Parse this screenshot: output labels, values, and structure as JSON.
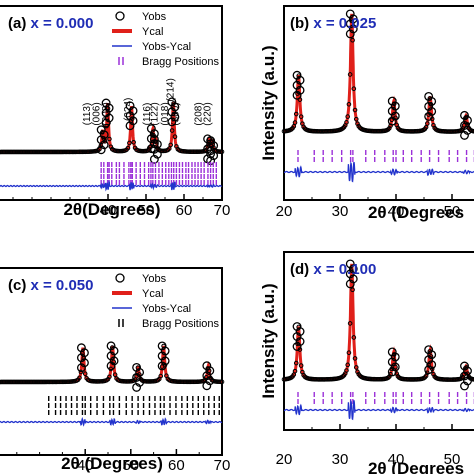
{
  "chart_data": [
    {
      "type": "line",
      "panel_label": "(a)",
      "composition_label": "x = 0.000",
      "xlabel": "2θ(Degrees)",
      "ylabel": "",
      "xlim": [
        10,
        70
      ],
      "ylim": [
        0,
        100
      ],
      "xticks": [
        "40",
        "50",
        "60",
        "70"
      ],
      "xtick_values": [
        40,
        50,
        60,
        70
      ],
      "legend": {
        "placement": "top-right",
        "entries": [
          "Yobs",
          "Ycal",
          "Yobs-Ycal",
          "Bragg Positions"
        ]
      },
      "peak_labels": [
        {
          "text": "(113)",
          "x": 35.2
        },
        {
          "text": "(006)",
          "x": 37.8
        },
        {
          "text": "(202)",
          "x": 40.2
        },
        {
          "text": "(024)",
          "x": 46.0
        },
        {
          "text": "(116)",
          "x": 51.0
        },
        {
          "text": "(122)",
          "x": 53.0
        },
        {
          "text": "(018)",
          "x": 55.8
        },
        {
          "text": "(214)",
          "x": 57.2
        },
        {
          "text": "(300)",
          "x": 58.6
        },
        {
          "text": "(208)",
          "x": 64.6
        },
        {
          "text": "(220)",
          "x": 67.0
        }
      ],
      "peaks": [
        {
          "x": 38.6,
          "height": 20
        },
        {
          "x": 39.9,
          "height": 48
        },
        {
          "x": 46.2,
          "height": 46
        },
        {
          "x": 51.8,
          "height": 22
        },
        {
          "x": 52.6,
          "height": 10
        },
        {
          "x": 57.2,
          "height": 50
        },
        {
          "x": 66.6,
          "height": 12
        },
        {
          "x": 67.4,
          "height": 10
        }
      ],
      "bragg_positions": [
        38.2,
        38.9,
        39.9,
        40.3,
        41.0,
        42.2,
        43.0,
        44.2,
        45.5,
        46.0,
        46.4,
        47.4,
        48.5,
        49.6,
        50.7,
        51.3,
        51.8,
        52.5,
        53.4,
        54.3,
        55.2,
        56.0,
        56.7,
        57.3,
        58.0,
        58.8,
        59.6,
        60.5,
        61.2,
        62.1,
        62.9,
        63.7,
        64.5,
        65.3,
        66.3,
        67.0,
        67.7,
        68.5
      ],
      "colors": {
        "label": "#1f2db5",
        "calc": "#e0201a",
        "diff": "#2233cc",
        "bragg": "#9b30d8",
        "obs": "#000000"
      }
    },
    {
      "type": "line",
      "panel_label": "(b)",
      "composition_label": "x = 0.025",
      "xlabel": "2θ (Degrees",
      "ylabel": "Intensity (a.u.)",
      "xlim": [
        20,
        55
      ],
      "ylim": [
        0,
        100
      ],
      "xticks": [
        "20",
        "30",
        "40",
        "50"
      ],
      "xtick_values": [
        20,
        30,
        40,
        50
      ],
      "peaks": [
        {
          "x": 22.6,
          "height": 48
        },
        {
          "x": 32.1,
          "height": 100
        },
        {
          "x": 39.6,
          "height": 26
        },
        {
          "x": 46.1,
          "height": 30
        },
        {
          "x": 52.5,
          "height": 14
        }
      ],
      "bragg_positions": [
        22.5,
        25.4,
        27.0,
        28.6,
        30.3,
        31.9,
        32.3,
        34.6,
        36.2,
        38.0,
        39.5,
        40.0,
        41.3,
        42.8,
        44.5,
        46.0,
        47.6,
        49.5,
        51.0,
        52.6,
        54.0
      ],
      "colors": {
        "label": "#1f2db5",
        "calc": "#e0201a",
        "diff": "#2233cc",
        "bragg": "#9b30d8",
        "obs": "#000000"
      }
    },
    {
      "type": "line",
      "panel_label": "(c)",
      "composition_label": "x = 0.050",
      "xlabel": "2θ (Degrees)",
      "ylabel": "",
      "xlim": [
        20,
        70
      ],
      "ylim": [
        0,
        100
      ],
      "xticks": [
        "40",
        "50",
        "60",
        "70"
      ],
      "xtick_values": [
        40,
        50,
        60,
        70
      ],
      "legend": {
        "placement": "top-right",
        "entries": [
          "Yobs",
          "Ycal",
          "Yobs-Ycal",
          "Bragg Positions"
        ]
      },
      "peaks": [
        {
          "x": 39.5,
          "height": 38
        },
        {
          "x": 46.0,
          "height": 40
        },
        {
          "x": 51.6,
          "height": 16
        },
        {
          "x": 57.2,
          "height": 40
        },
        {
          "x": 67.0,
          "height": 18
        }
      ],
      "bragg_positions": [
        32.0,
        33.5,
        34.6,
        35.8,
        37.0,
        38.2,
        39.4,
        40.0,
        41.2,
        42.6,
        44.0,
        45.4,
        46.2,
        47.5,
        49.0,
        50.3,
        51.6,
        52.8,
        54.1,
        55.3,
        56.5,
        57.3,
        58.6,
        59.9,
        61.2,
        62.4,
        63.6,
        64.8,
        66.0,
        67.1,
        68.3,
        69.4
      ],
      "colors": {
        "label": "#1f2db5",
        "calc": "#e0201a",
        "diff": "#2233cc",
        "bragg": "#000000",
        "obs": "#000000"
      }
    },
    {
      "type": "line",
      "panel_label": "(d)",
      "composition_label": "x = 0.100",
      "xlabel": "2θ (Degrees",
      "ylabel": "Intensity (a.u.)",
      "xlim": [
        20,
        55
      ],
      "ylim": [
        0,
        100
      ],
      "xticks": [
        "20",
        "30",
        "40",
        "50"
      ],
      "xtick_values": [
        20,
        30,
        40,
        50
      ],
      "peaks": [
        {
          "x": 22.6,
          "height": 46
        },
        {
          "x": 32.1,
          "height": 100
        },
        {
          "x": 39.6,
          "height": 24
        },
        {
          "x": 46.1,
          "height": 26
        },
        {
          "x": 52.5,
          "height": 12
        }
      ],
      "bragg_positions": [
        22.5,
        25.4,
        27.0,
        28.6,
        30.3,
        31.9,
        32.3,
        34.6,
        36.2,
        38.0,
        39.5,
        40.0,
        41.3,
        42.8,
        44.5,
        46.0,
        47.6,
        49.5,
        51.0,
        52.6,
        54.0
      ],
      "colors": {
        "label": "#1f2db5",
        "calc": "#e0201a",
        "diff": "#2233cc",
        "bragg": "#9b30d8",
        "obs": "#000000"
      }
    }
  ]
}
